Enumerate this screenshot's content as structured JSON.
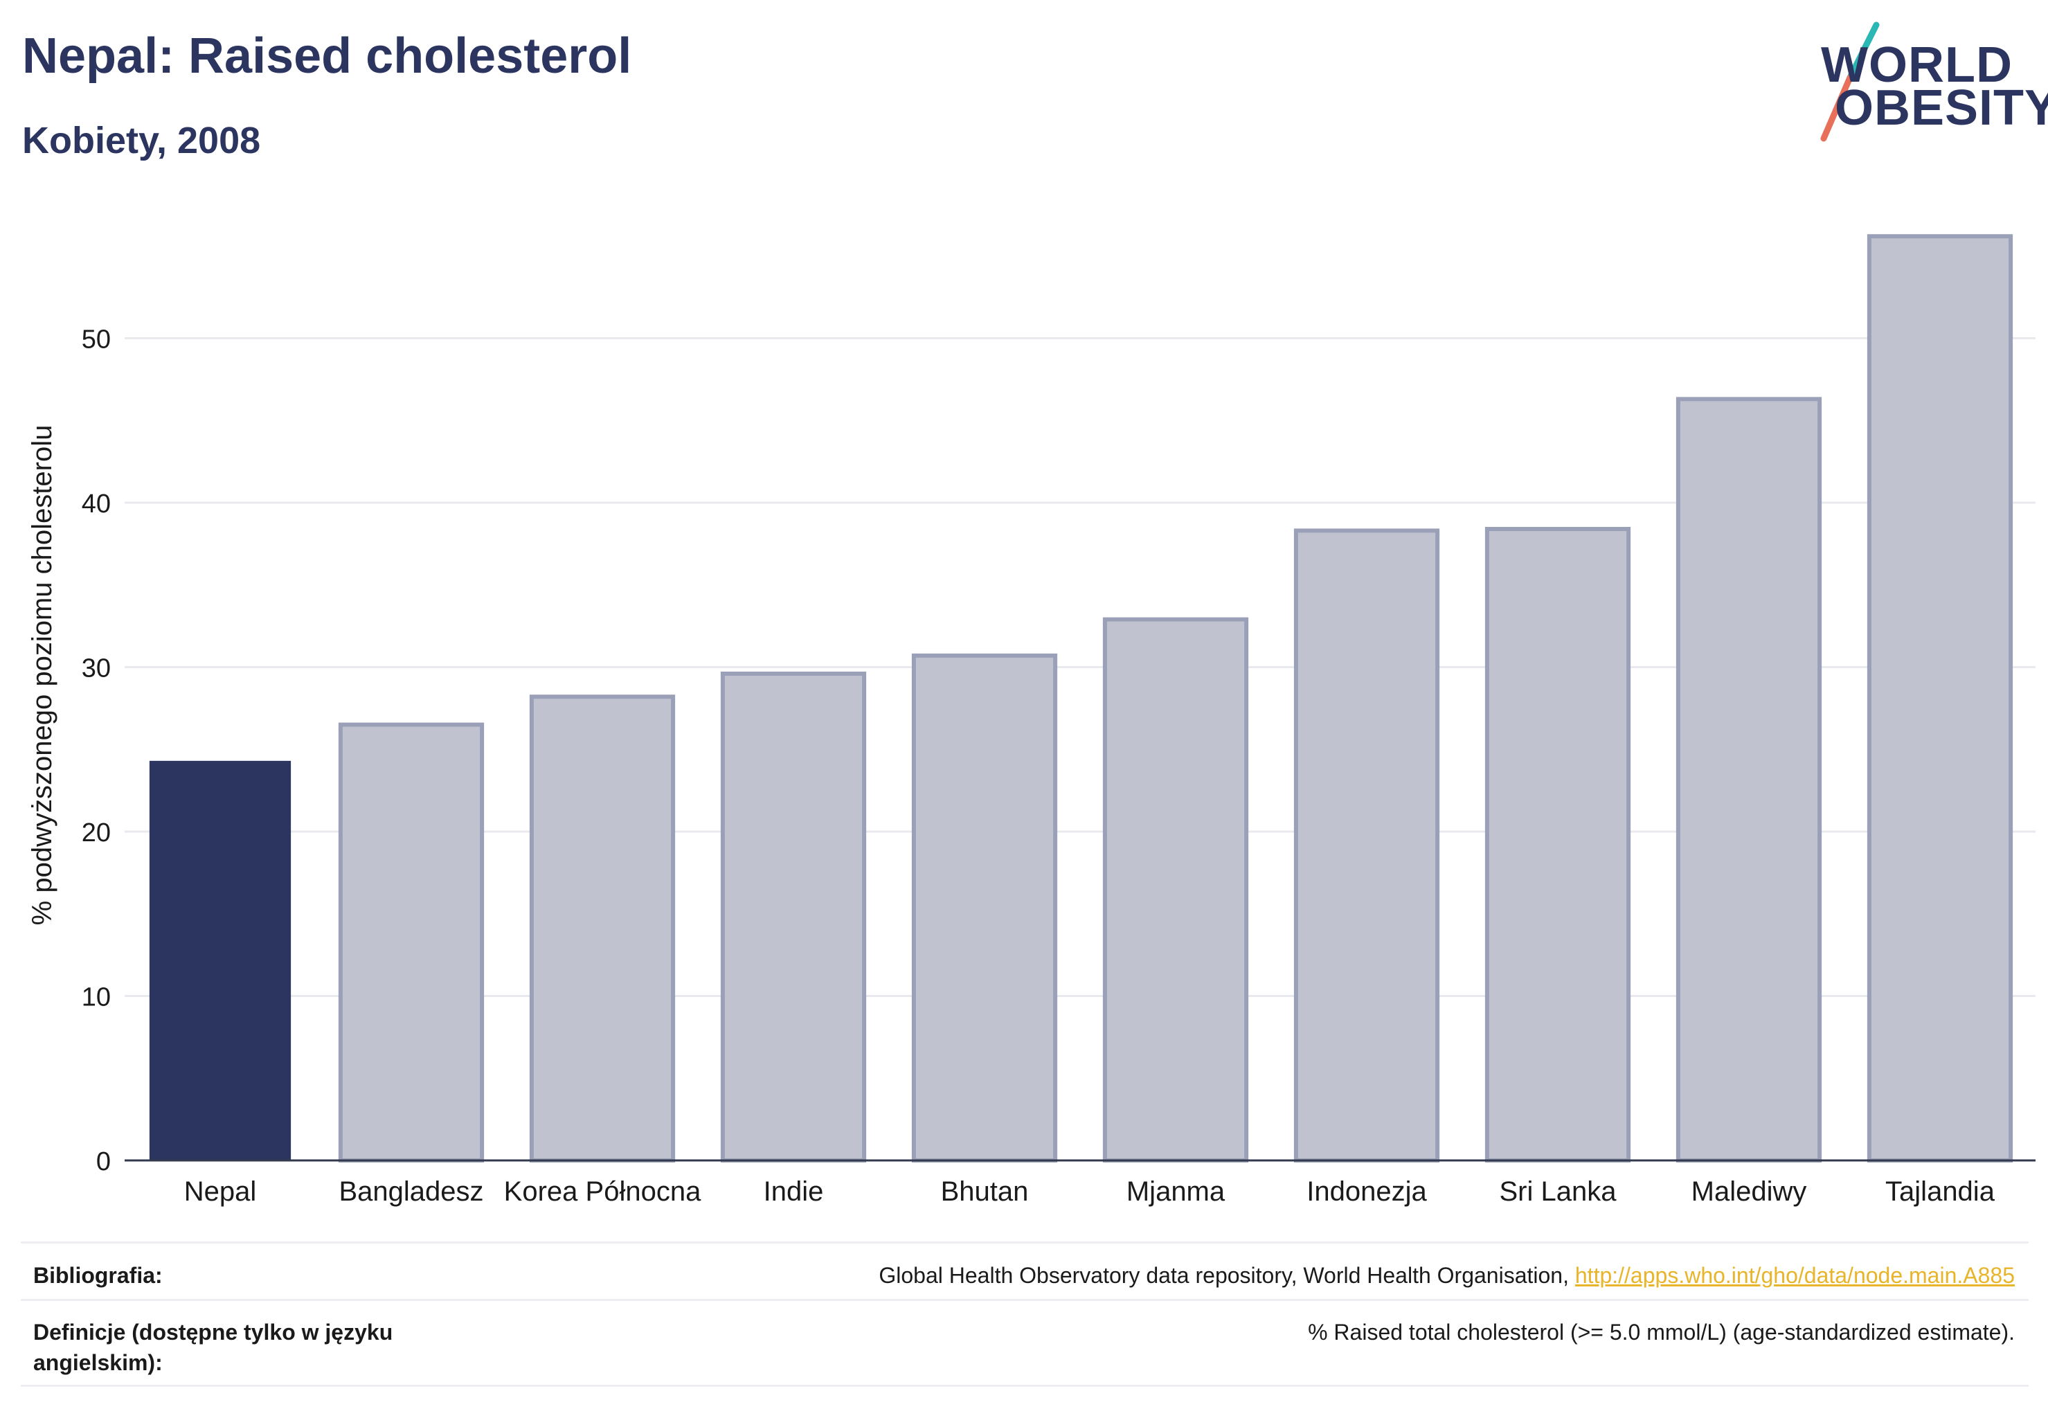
{
  "header": {
    "title": "Nepal: Raised cholesterol",
    "subtitle": "Kobiety, 2008"
  },
  "logo": {
    "line1": "WORLD",
    "line2": "OBESITY",
    "colors": {
      "text": "#2b3560",
      "slash_top": "#2bb7b3",
      "slash_bottom": "#e8705a"
    }
  },
  "chart_data": {
    "type": "bar",
    "title": "Nepal: Raised cholesterol",
    "subtitle": "Kobiety, 2008",
    "xlabel": "",
    "ylabel": "% podwyższonego poziomu cholesterolu",
    "categories": [
      "Nepal",
      "Bangladesz",
      "Korea Północna",
      "Indie",
      "Bhutan",
      "Mjanma",
      "Indonezja",
      "Sri Lanka",
      "Malediwy",
      "Tajlandia"
    ],
    "values": [
      24.3,
      26.5,
      28.2,
      29.6,
      30.7,
      32.9,
      38.3,
      38.4,
      46.3,
      56.2
    ],
    "highlight": "Nepal",
    "ylim": [
      0,
      60
    ],
    "yticks": [
      0,
      10,
      20,
      30,
      40,
      50
    ],
    "grid": true,
    "colors": {
      "highlight": "#2b3560",
      "other_fill": "#c0c3cf",
      "other_stroke": "#9aa0b8"
    }
  },
  "footer": {
    "bibliography_label": "Bibliografia:",
    "bibliography_text": "Global Health Observatory data repository, World Health Organisation,",
    "bibliography_link": "http://apps.who.int/gho/data/node.main.A885",
    "definitions_label": "Definicje (dostępne tylko w języku angielskim):",
    "definitions_text": "% Raised total cholesterol (>= 5.0 mmol/L) (age-standardized estimate)."
  }
}
